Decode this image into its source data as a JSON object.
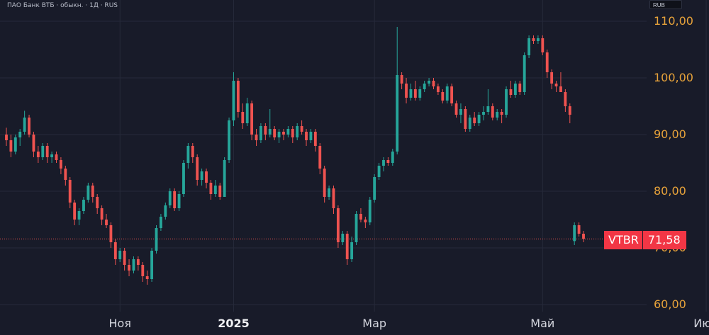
{
  "header": {
    "title": "ПАО Банк ВТБ · обыкн. · 1Д · RUS",
    "currency": "RUB"
  },
  "colors": {
    "background": "#181b29",
    "grid": "#262a3a",
    "up": "#26a69a",
    "down": "#ef5350",
    "axis_text": "#e8a33a",
    "price_line": "#ef5350"
  },
  "price_tag": {
    "ticker": "VTBR",
    "price": "71,58"
  },
  "chart_data": {
    "type": "candlestick",
    "y_axis": {
      "min": 60,
      "max": 110,
      "ticks": [
        "60,00",
        "70,00",
        "80,00",
        "90,00",
        "100,00",
        "110,00"
      ],
      "tick_values": [
        60,
        70,
        80,
        90,
        100,
        110
      ]
    },
    "x_axis": {
      "labels": [
        {
          "text": "Ноя",
          "bar": 25,
          "bold": false
        },
        {
          "text": "2025",
          "bar": 50,
          "bold": true
        },
        {
          "text": "Мар",
          "bar": 81,
          "bold": false
        },
        {
          "text": "Май",
          "bar": 118,
          "bold": false
        },
        {
          "text": "Июл",
          "bar": 154,
          "bold": false
        }
      ]
    },
    "last_price": 71.58,
    "candles": [
      [
        90,
        91.2,
        88,
        89
      ],
      [
        89,
        90,
        86,
        87
      ],
      [
        87,
        90,
        86.5,
        89.5
      ],
      [
        89.5,
        91,
        88,
        90.5
      ],
      [
        90.5,
        94.2,
        90,
        93
      ],
      [
        93,
        93.5,
        89.5,
        90
      ],
      [
        90,
        90.5,
        86,
        87
      ],
      [
        87,
        88,
        85,
        86
      ],
      [
        86,
        88.5,
        85.5,
        88
      ],
      [
        88,
        88.5,
        85,
        86
      ],
      [
        86,
        87,
        85,
        86.5
      ],
      [
        86.5,
        87,
        85,
        85.5
      ],
      [
        85.5,
        86,
        83,
        84
      ],
      [
        84,
        84.5,
        81,
        82
      ],
      [
        82,
        82.5,
        77,
        78
      ],
      [
        78,
        78.5,
        74,
        75
      ],
      [
        75,
        77,
        74,
        76.5
      ],
      [
        76.5,
        79,
        76,
        78.5
      ],
      [
        78.5,
        81.5,
        78,
        81
      ],
      [
        81,
        81.5,
        78,
        79
      ],
      [
        79,
        79.5,
        76,
        77
      ],
      [
        77,
        77.5,
        74,
        75
      ],
      [
        75,
        76,
        73.5,
        74
      ],
      [
        74,
        74.5,
        70,
        71
      ],
      [
        71,
        71.5,
        67,
        68
      ],
      [
        68,
        70,
        67.5,
        69.5
      ],
      [
        69.5,
        70,
        66,
        67
      ],
      [
        67,
        68,
        65,
        66
      ],
      [
        66,
        68.5,
        65.5,
        68
      ],
      [
        68,
        68.5,
        66,
        67
      ],
      [
        67,
        67.5,
        64,
        65
      ],
      [
        65,
        66,
        63.5,
        64.5
      ],
      [
        64.5,
        70,
        64,
        69.5
      ],
      [
        69.5,
        74,
        69,
        73.5
      ],
      [
        73.5,
        76,
        73,
        75.5
      ],
      [
        75.5,
        78,
        75,
        77.5
      ],
      [
        77.5,
        80.5,
        77,
        80
      ],
      [
        80,
        80.5,
        76.5,
        77
      ],
      [
        77,
        80,
        76.5,
        79.5
      ],
      [
        79.5,
        85.5,
        79,
        85
      ],
      [
        85,
        88.5,
        84,
        88
      ],
      [
        88,
        88.5,
        85,
        86
      ],
      [
        86,
        86.5,
        81,
        82
      ],
      [
        82,
        84,
        81,
        83.5
      ],
      [
        83.5,
        84,
        80.5,
        81.5
      ],
      [
        81.5,
        82,
        78.5,
        79.5
      ],
      [
        79.5,
        82,
        79,
        81
      ],
      [
        81,
        81.5,
        78.5,
        79
      ],
      [
        79,
        86,
        79,
        85.5
      ],
      [
        85.5,
        93,
        85,
        92.5
      ],
      [
        92.5,
        101,
        91.5,
        99.5
      ],
      [
        99.5,
        100,
        93,
        94
      ],
      [
        94,
        95.5,
        91,
        92
      ],
      [
        92,
        96.5,
        91.5,
        95.5
      ],
      [
        95.5,
        96,
        89,
        90
      ],
      [
        90,
        91,
        88,
        89
      ],
      [
        89,
        92,
        88.5,
        91.5
      ],
      [
        91.5,
        92,
        89,
        90
      ],
      [
        90,
        94.5,
        89.5,
        91
      ],
      [
        91,
        91.5,
        89,
        89.5
      ],
      [
        89.5,
        91,
        88.5,
        90.5
      ],
      [
        90.5,
        91,
        89,
        90
      ],
      [
        90,
        91.5,
        89.5,
        91
      ],
      [
        91,
        91.5,
        88.5,
        89.5
      ],
      [
        89.5,
        92,
        89,
        91.5
      ],
      [
        91.5,
        92.5,
        90,
        90.5
      ],
      [
        90.5,
        91,
        88,
        89
      ],
      [
        89,
        91,
        88.5,
        90.5
      ],
      [
        90.5,
        91,
        87,
        88
      ],
      [
        88,
        88.5,
        83,
        84
      ],
      [
        84,
        84.5,
        78,
        79
      ],
      [
        79,
        81,
        78.5,
        80.5
      ],
      [
        80.5,
        81,
        76,
        77
      ],
      [
        77,
        77.5,
        70,
        71
      ],
      [
        71,
        73,
        70.5,
        72.5
      ],
      [
        72.5,
        73,
        67,
        68
      ],
      [
        68,
        72,
        67.5,
        71
      ],
      [
        71,
        76.5,
        70.5,
        76
      ],
      [
        76,
        77,
        74.5,
        75
      ],
      [
        75,
        75.5,
        73.5,
        74.5
      ],
      [
        74.5,
        79,
        74,
        78.5
      ],
      [
        78.5,
        83,
        78,
        82.5
      ],
      [
        82.5,
        85,
        82,
        84.5
      ],
      [
        84.5,
        86,
        83.5,
        85.5
      ],
      [
        85.5,
        86,
        84.5,
        85
      ],
      [
        85,
        87.5,
        84.5,
        87
      ],
      [
        87,
        109,
        86.5,
        100.5
      ],
      [
        100.5,
        101,
        98,
        99
      ],
      [
        99,
        100,
        95.5,
        96.5
      ],
      [
        96.5,
        99,
        96,
        98
      ],
      [
        98,
        99.5,
        96,
        96.5
      ],
      [
        96.5,
        98.5,
        96,
        98
      ],
      [
        98,
        99.5,
        97.5,
        99
      ],
      [
        99,
        100,
        98.5,
        99.5
      ],
      [
        99.5,
        100,
        98,
        98.5
      ],
      [
        98.5,
        99,
        97,
        97.5
      ],
      [
        97.5,
        98,
        95.5,
        96
      ],
      [
        96,
        99,
        95.5,
        98.5
      ],
      [
        98.5,
        99,
        95,
        95.5
      ],
      [
        95.5,
        96,
        93,
        93.5
      ],
      [
        93.5,
        95.5,
        92,
        94.5
      ],
      [
        94.5,
        95,
        90.5,
        91
      ],
      [
        91,
        93.5,
        90.5,
        93
      ],
      [
        93,
        94,
        91.5,
        92
      ],
      [
        92,
        94,
        91.5,
        93.5
      ],
      [
        93.5,
        95,
        92.5,
        94
      ],
      [
        94,
        98,
        93.5,
        95
      ],
      [
        95,
        95.5,
        92.5,
        93
      ],
      [
        93,
        94.5,
        92.5,
        94
      ],
      [
        94,
        94.5,
        92,
        93.5
      ],
      [
        93.5,
        98.5,
        93,
        98
      ],
      [
        98,
        99.5,
        96.5,
        97
      ],
      [
        97,
        99.5,
        96.5,
        99
      ],
      [
        99,
        99.5,
        97,
        97.5
      ],
      [
        97.5,
        104.5,
        97,
        104
      ],
      [
        104,
        107.5,
        103.5,
        107
      ],
      [
        107,
        107.5,
        106,
        106.5
      ],
      [
        106.5,
        107.5,
        106,
        107
      ],
      [
        107,
        107.5,
        104,
        104.5
      ],
      [
        104.5,
        105,
        100,
        101
      ],
      [
        101,
        101.5,
        98,
        99
      ],
      [
        99,
        99.5,
        97.5,
        98.5
      ],
      [
        98.5,
        101,
        97.5,
        97.5
      ],
      [
        97.5,
        98,
        94,
        95
      ],
      [
        95,
        95.5,
        92,
        93.5
      ],
      [
        71.2,
        74.5,
        70.5,
        74
      ],
      [
        74,
        74.5,
        72,
        72.5
      ],
      [
        72.5,
        73,
        71,
        71.6
      ]
    ]
  }
}
